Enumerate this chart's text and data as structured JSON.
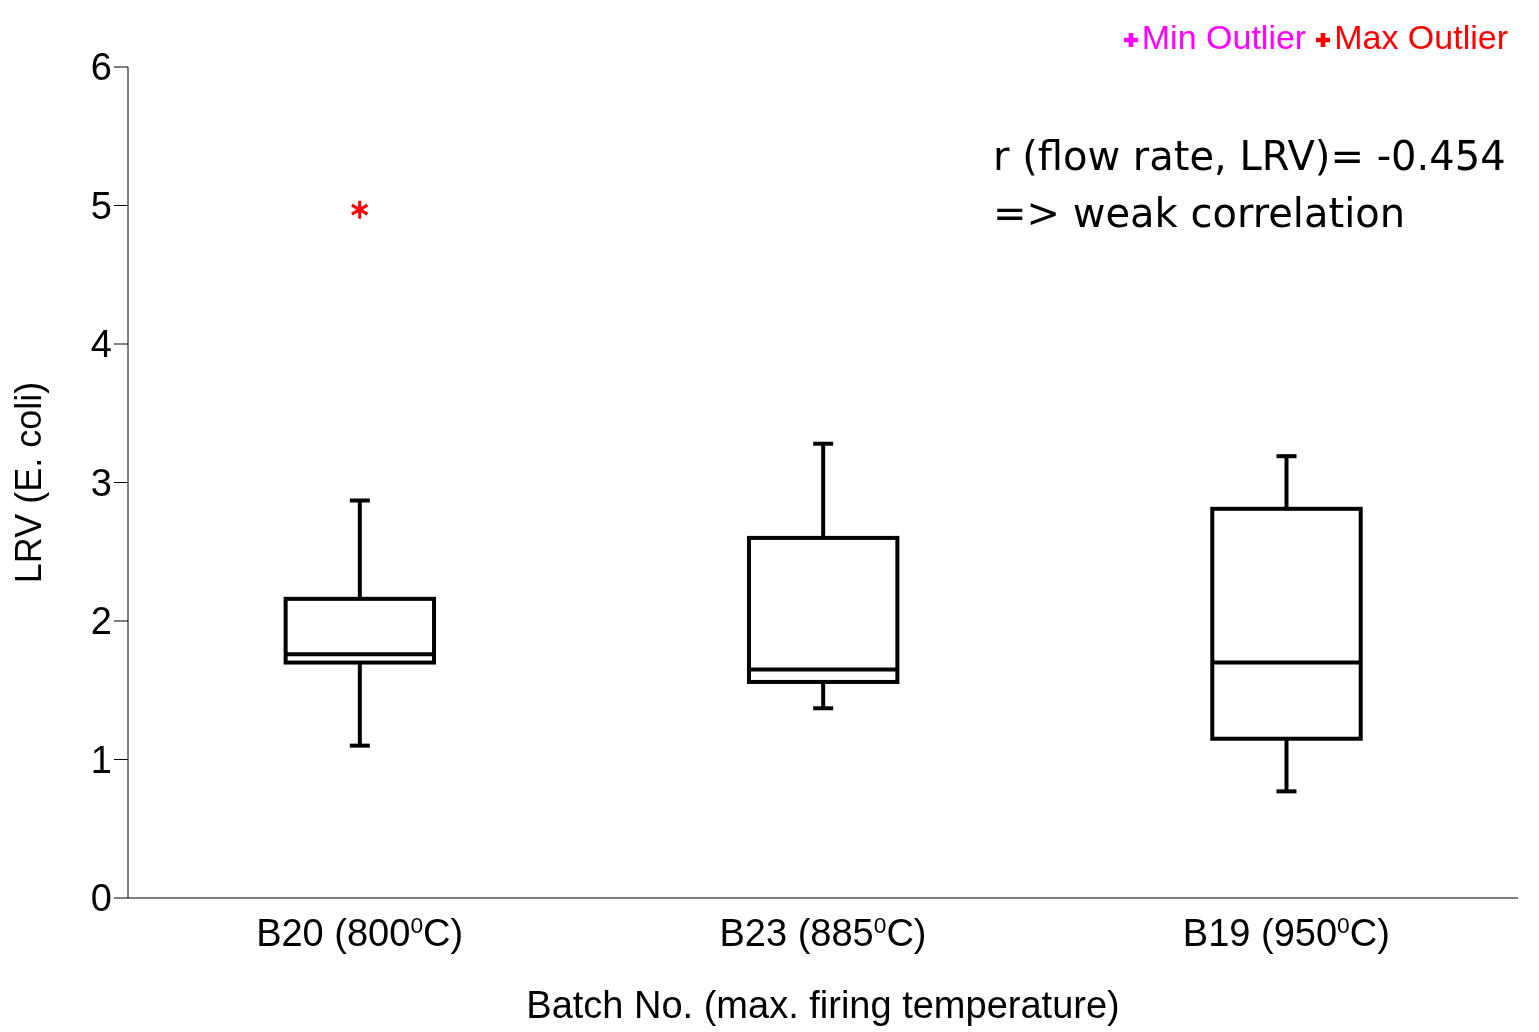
{
  "chart_data": {
    "type": "box",
    "categories": [
      "B20 (800$^{0}$C)",
      "B23 (885$^{0}$C)",
      "B19 (950$^{0}$C)"
    ],
    "boxes": [
      {
        "low": 1.1,
        "q1": 1.7,
        "median": 1.76,
        "q3": 2.16,
        "high": 2.87
      },
      {
        "low": 1.37,
        "q1": 1.56,
        "median": 1.65,
        "q3": 2.6,
        "high": 3.28
      },
      {
        "low": 0.77,
        "q1": 1.15,
        "median": 1.7,
        "q3": 2.81,
        "high": 3.19
      }
    ],
    "series": [
      {
        "type": "scatter",
        "name": "Min Outlier",
        "color": "#ff00ff",
        "x": [
          "B20 (800$^{0}$C)",
          "B23 (885$^{0}$C)",
          "B19 (950$^{0}$C)"
        ],
        "values": [
          null,
          null,
          null
        ]
      },
      {
        "type": "scatter",
        "name": "Max Outlier",
        "color": "#ff0000",
        "x": [
          "B20 (800$^{0}$C)",
          "B23 (885$^{0}$C)",
          "B19 (950$^{0}$C)"
        ],
        "values": [
          4.97,
          null,
          null
        ]
      }
    ],
    "marker": "cross",
    "xlabel": "Batch No. (max. firing temperature)",
    "ylabel": "LRV (E. coli)",
    "ylim": [
      0,
      6
    ],
    "yticks": [
      0,
      1,
      2,
      3,
      4,
      5,
      6
    ],
    "annotations": [
      "r (flow rate, LRV)= -0.454",
      "=> weak correlation"
    ],
    "grid": false,
    "legend": "top right"
  }
}
